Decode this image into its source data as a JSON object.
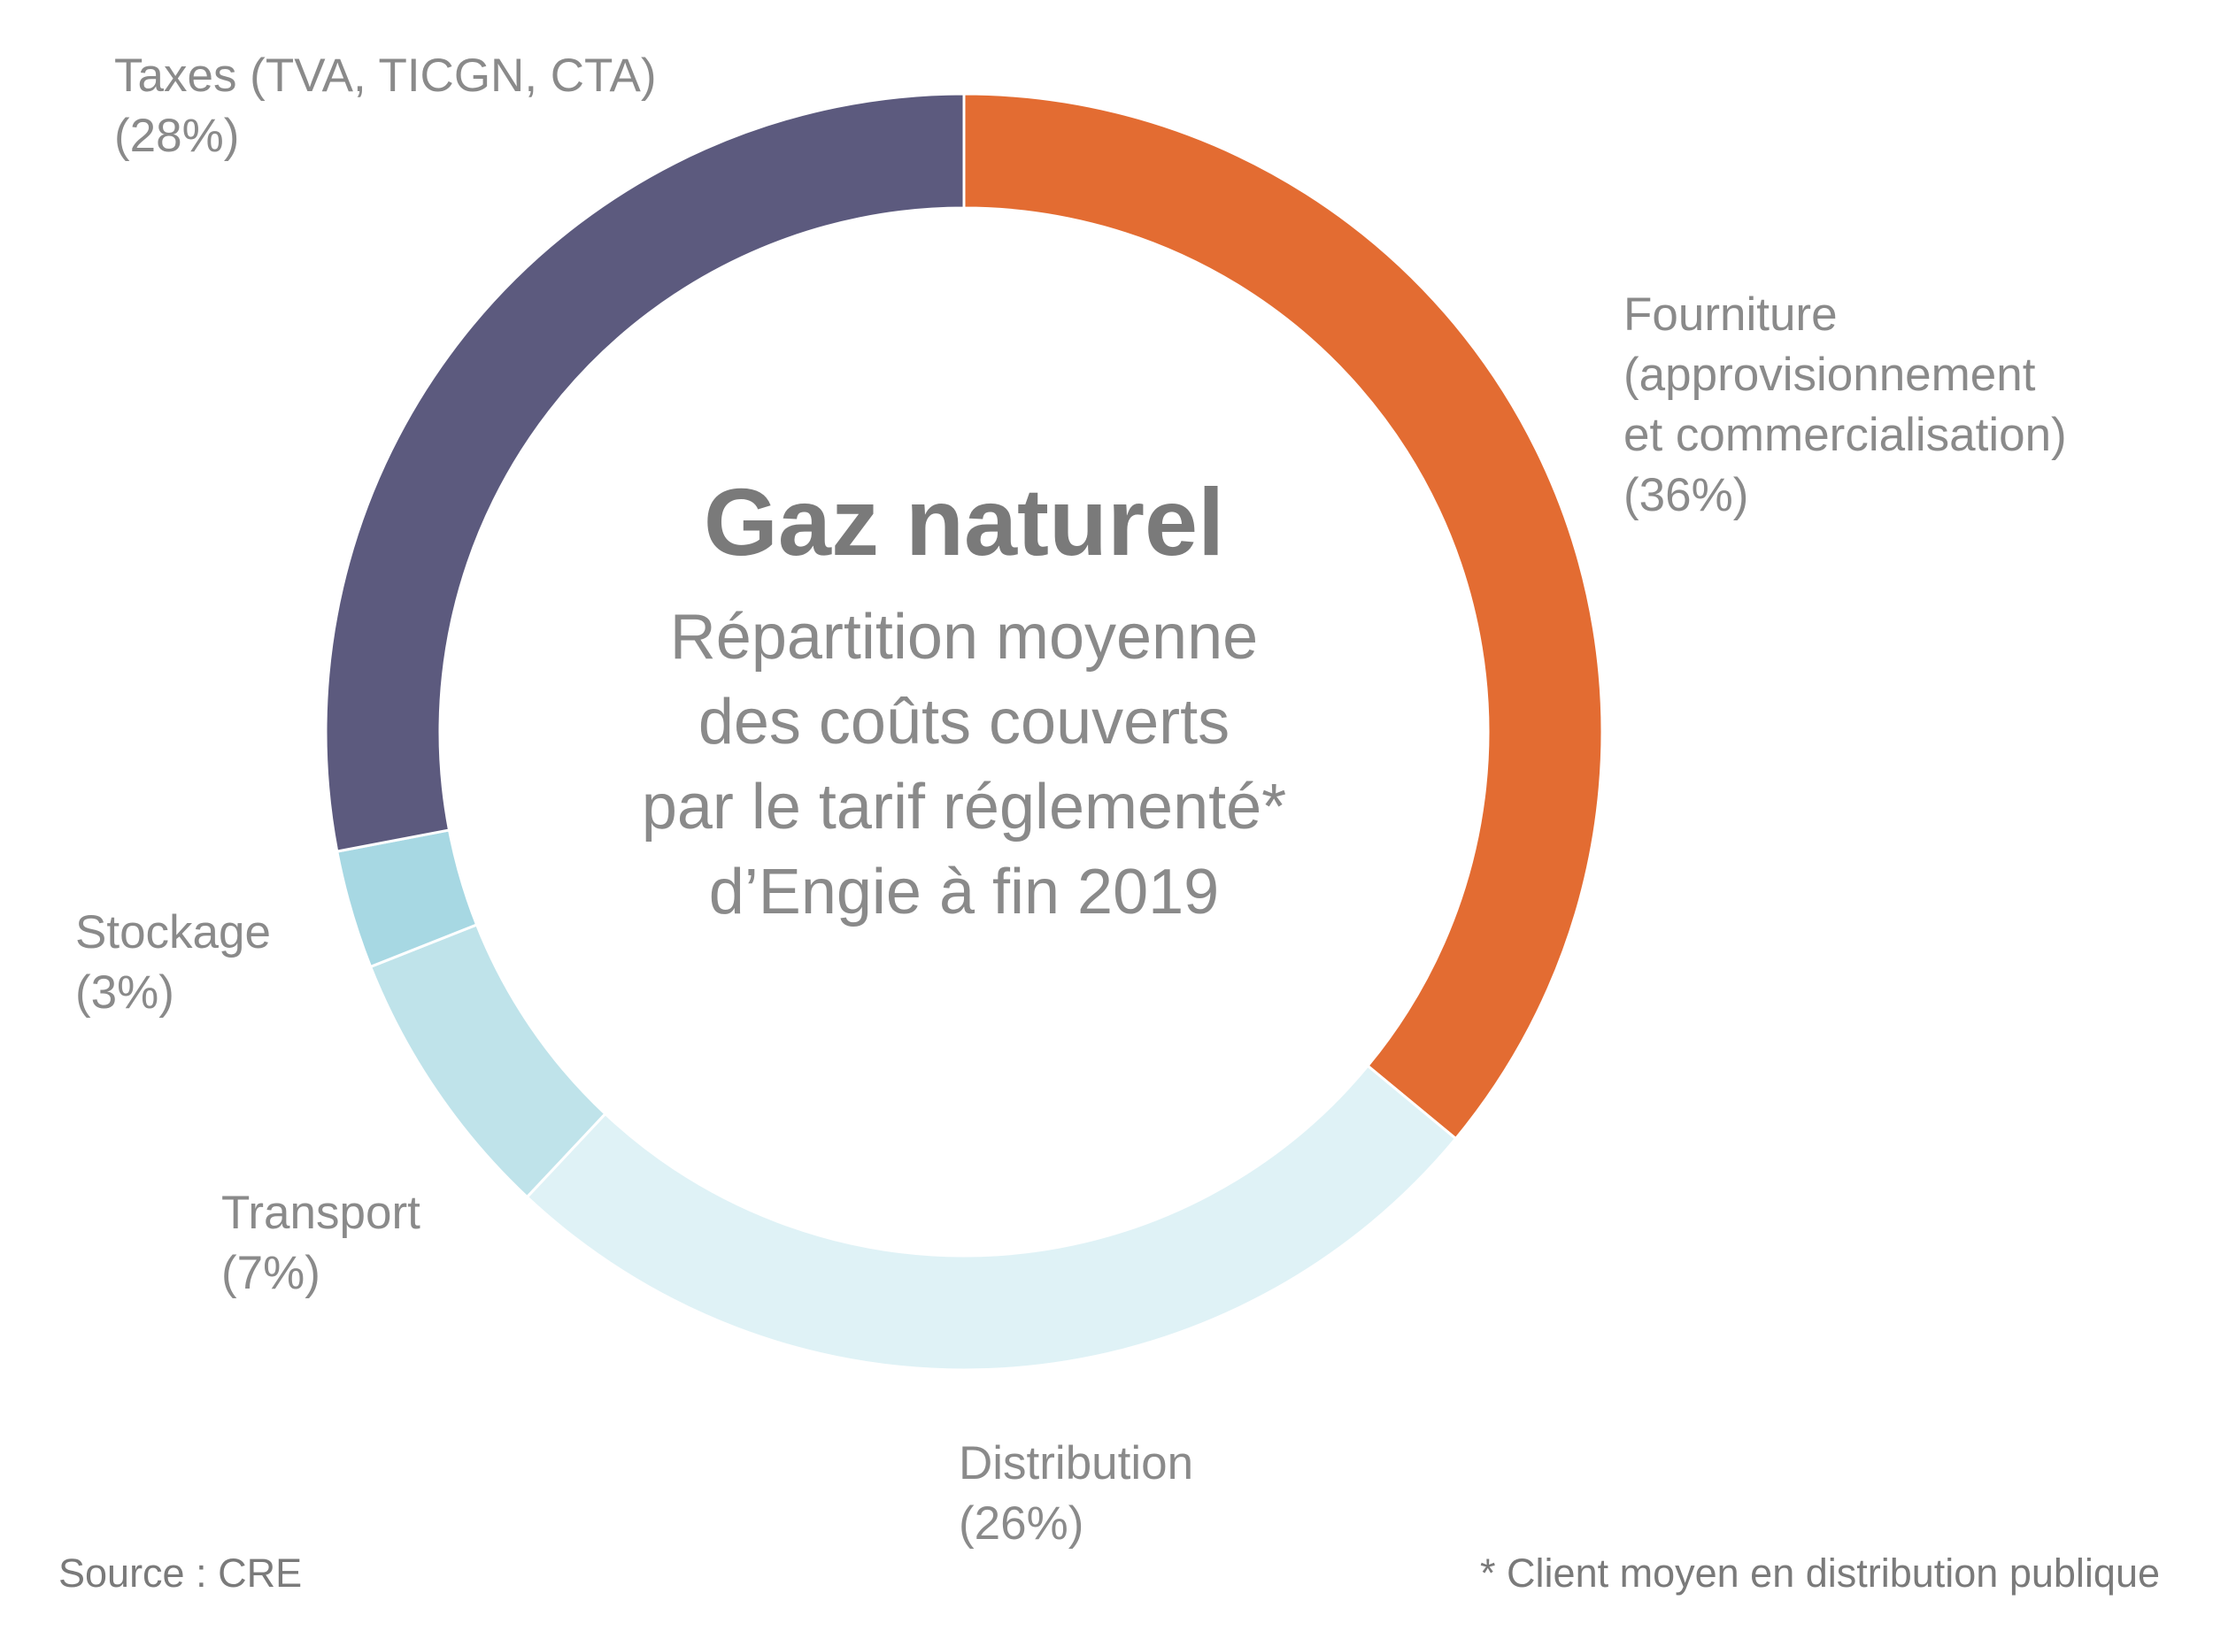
{
  "chart_data": {
    "type": "pie",
    "title": "Gaz naturel",
    "subtitle_lines": [
      "Répartition moyenne",
      "des coûts couverts",
      "par le tarif réglementé*",
      "d’Engie à fin 2019"
    ],
    "unit": "%",
    "segments": [
      {
        "label_lines": [
          "Fourniture",
          "(approvisionnement",
          "et commercialisation)",
          "(36%)"
        ],
        "value": 36,
        "color": "#E36C32"
      },
      {
        "label_lines": [
          "Distribution",
          "(26%)"
        ],
        "value": 26,
        "color": "#DFF2F6"
      },
      {
        "label_lines": [
          "Transport",
          "(7%)"
        ],
        "value": 7,
        "color": "#BFE3EA"
      },
      {
        "label_lines": [
          "Stockage",
          "(3%)"
        ],
        "value": 3,
        "color": "#A7D8E3"
      },
      {
        "label_lines": [
          "Taxes (TVA, TICGN, CTA)",
          "(28%)"
        ],
        "value": 28,
        "color": "#5C5A7E"
      }
    ]
  },
  "source": "Source : CRE",
  "footnote": "* Client moyen en distribution publique"
}
